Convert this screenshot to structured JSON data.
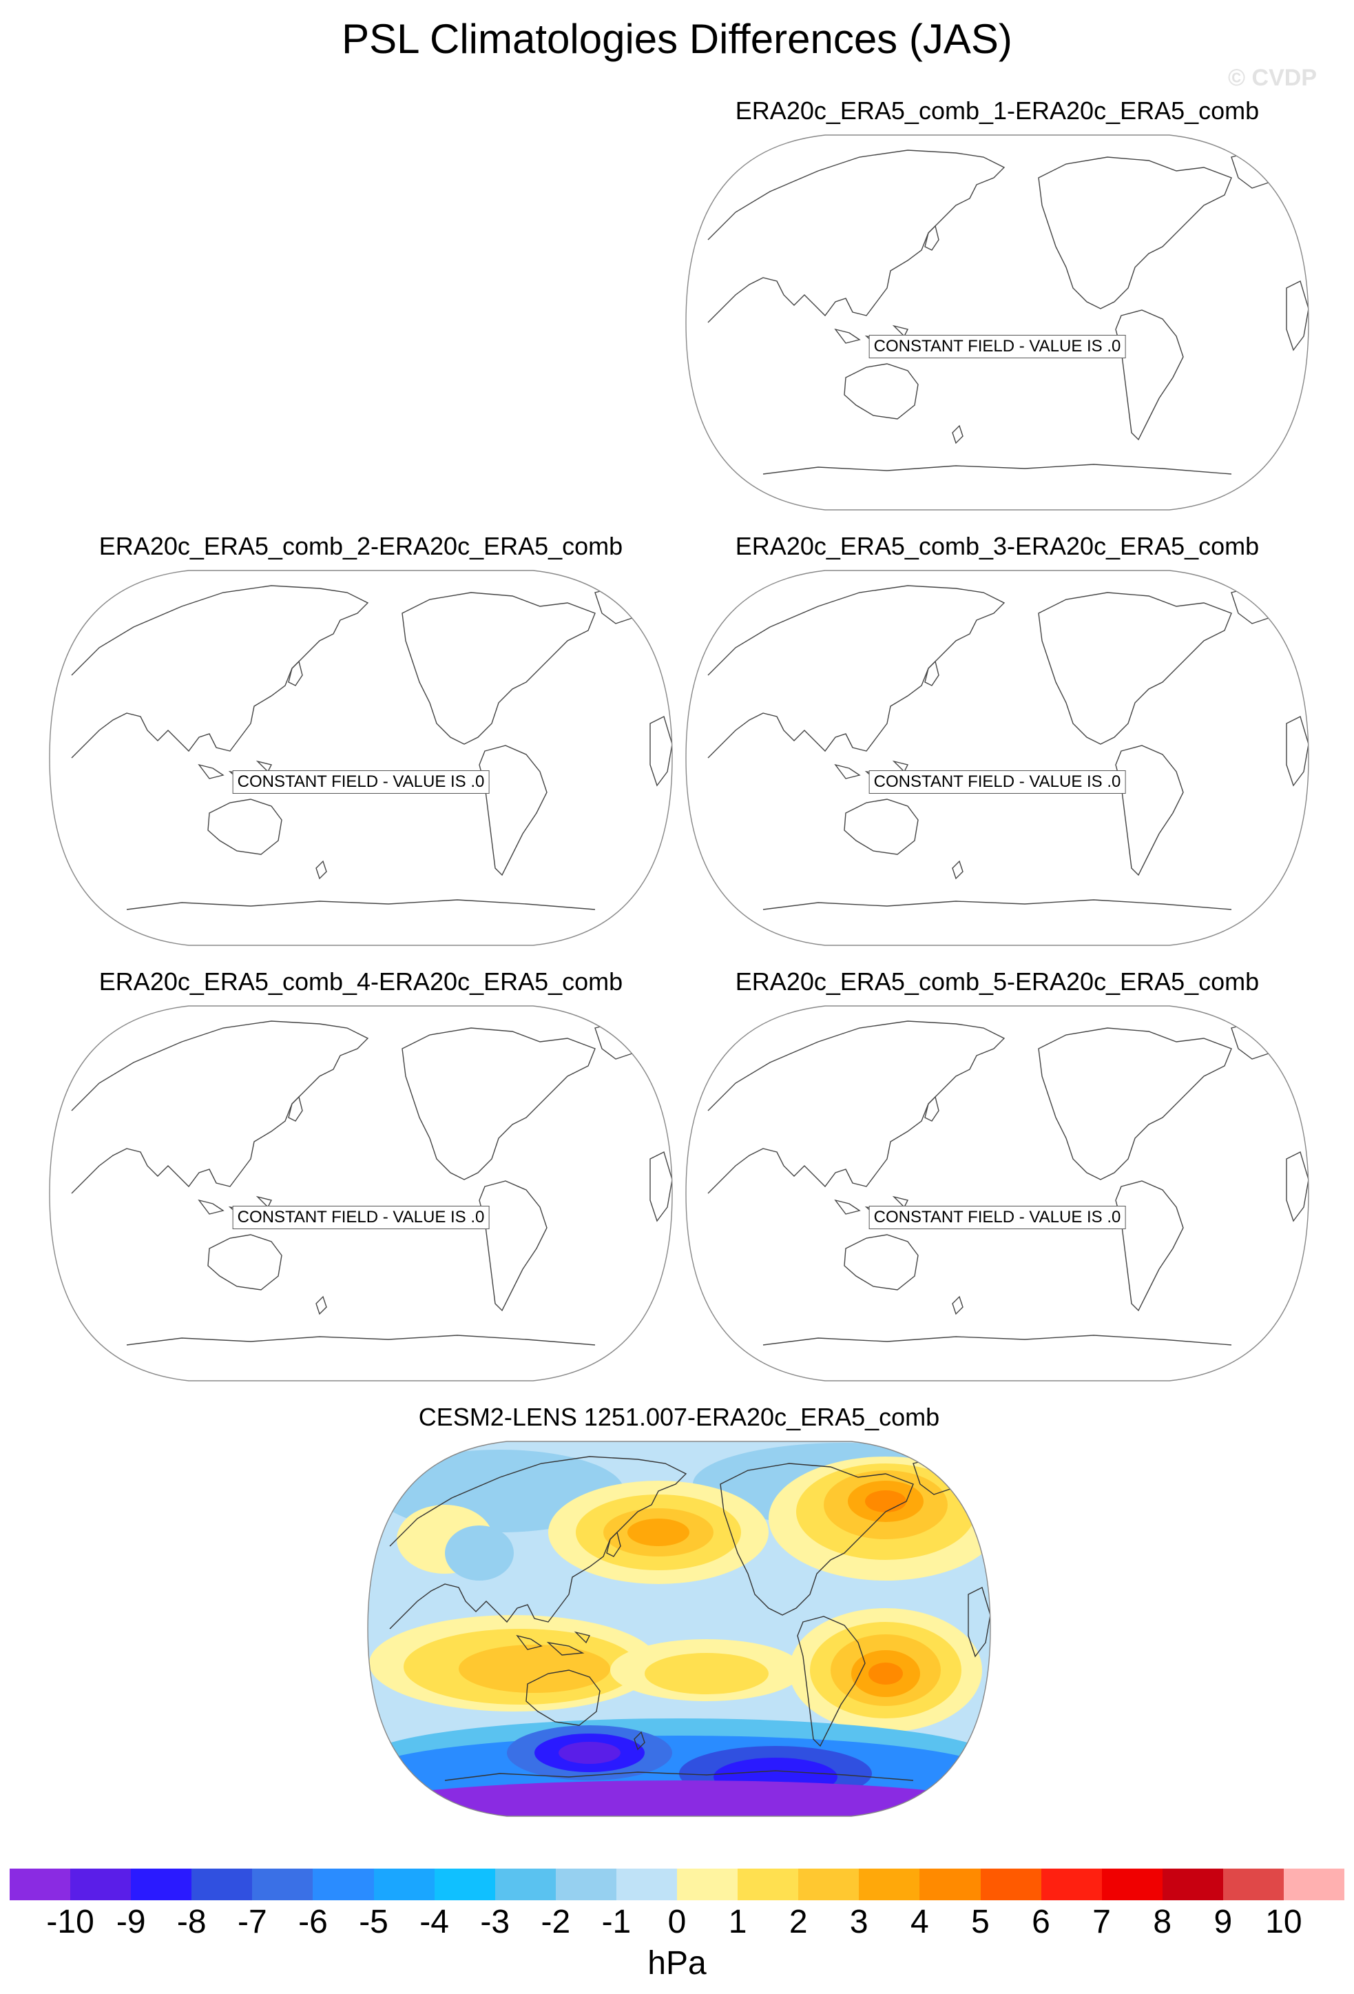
{
  "figure": {
    "title": "PSL Climatologies Differences (JAS)",
    "watermark": "© CVDP",
    "units": "hPa"
  },
  "panels": [
    {
      "title": "ERA20c_ERA5_comb_1-ERA20c_ERA5_comb",
      "label": "CONSTANT FIELD - VALUE IS .0",
      "filled": false
    },
    {
      "title": "ERA20c_ERA5_comb_2-ERA20c_ERA5_comb",
      "label": "CONSTANT FIELD - VALUE IS .0",
      "filled": false
    },
    {
      "title": "ERA20c_ERA5_comb_3-ERA20c_ERA5_comb",
      "label": "CONSTANT FIELD - VALUE IS .0",
      "filled": false
    },
    {
      "title": "ERA20c_ERA5_comb_4-ERA20c_ERA5_comb",
      "label": "CONSTANT FIELD - VALUE IS .0",
      "filled": false
    },
    {
      "title": "ERA20c_ERA5_comb_5-ERA20c_ERA5_comb",
      "label": "CONSTANT FIELD - VALUE IS .0",
      "filled": false
    },
    {
      "title": "CESM2-LENS 1251.007-ERA20c_ERA5_comb",
      "label": "",
      "filled": true
    }
  ],
  "colorbar": {
    "ticks": [
      "-10",
      "-9",
      "-8",
      "-7",
      "-6",
      "-5",
      "-4",
      "-3",
      "-2",
      "-1",
      "0",
      "1",
      "2",
      "3",
      "4",
      "5",
      "6",
      "7",
      "8",
      "9",
      "10"
    ],
    "colors": [
      "#8a2be2",
      "#5a1ee8",
      "#2a1aff",
      "#3050e0",
      "#3a70e6",
      "#2a8cff",
      "#1aa6ff",
      "#10c0ff",
      "#5ac2f0",
      "#96d0f0",
      "#bfe2f7",
      "#fff4a0",
      "#ffe050",
      "#ffc830",
      "#ffa80a",
      "#ff8a00",
      "#ff5a00",
      "#ff2010",
      "#f00000",
      "#c80010",
      "#e04848",
      "#ffb0b0"
    ]
  }
}
